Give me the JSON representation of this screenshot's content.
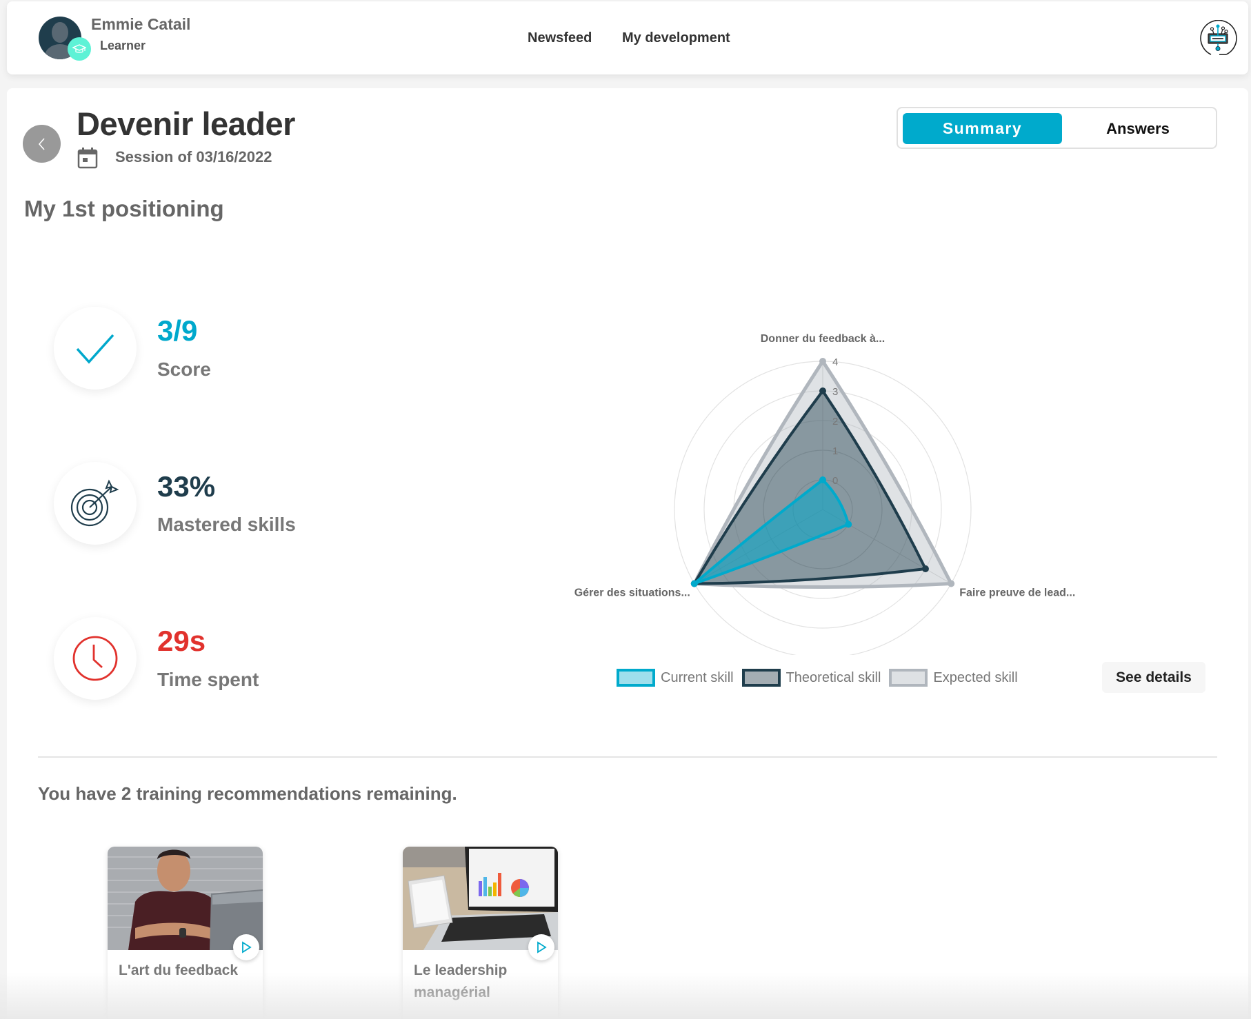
{
  "header": {
    "user_name": "Emmie Catail",
    "user_role": "Learner",
    "nav": [
      {
        "label": "Newsfeed"
      },
      {
        "label": "My development"
      }
    ],
    "avatar_icon": "user-silhouette",
    "role_icon": "graduation-cap-icon",
    "logo_icon": "circuit-brain-logo"
  },
  "page": {
    "title": "Devenir leader",
    "session_label": "Session of 03/16/2022",
    "section_title": "My 1st positioning",
    "back_icon": "chevron-left-icon",
    "calendar_icon": "calendar-icon"
  },
  "tabs": {
    "items": [
      {
        "label": "Summary",
        "active": true
      },
      {
        "label": "Answers",
        "active": false
      }
    ]
  },
  "stats": [
    {
      "icon": "check-icon",
      "value": "3/9",
      "label": "Score",
      "color": "#00a8cc"
    },
    {
      "icon": "target-icon",
      "value": "33%",
      "label": "Mastered skills",
      "color": "#1f3d4c"
    },
    {
      "icon": "clock-icon",
      "value": "29s",
      "label": "Time spent",
      "color": "#e1322d"
    }
  ],
  "chart_data": {
    "type": "radar",
    "categories": [
      "Donner du feedback à...",
      "Faire preuve de lead...",
      "Gérer des situations..."
    ],
    "series": [
      {
        "name": "Current skill",
        "values": [
          0,
          0,
          4
        ],
        "color": "#00aacc"
      },
      {
        "name": "Theoretical skill",
        "values": [
          3,
          3,
          4
        ],
        "color": "#1f3d4c"
      },
      {
        "name": "Expected skill",
        "values": [
          4,
          4,
          4
        ],
        "color": "#b0b6bd"
      }
    ],
    "ticks": [
      "0",
      "1",
      "2",
      "3",
      "4"
    ],
    "rlim": [
      0,
      4
    ],
    "legend_position": "bottom",
    "grid": true
  },
  "chart_actions": {
    "see_details_label": "See details"
  },
  "recommendations": {
    "title": "You have 2 training recommendations remaining.",
    "courses": [
      {
        "title": "L'art du feedback",
        "play_icon": "play-icon"
      },
      {
        "title": "Le leadership managérial",
        "play_icon": "play-icon"
      }
    ]
  },
  "colors": {
    "accent": "#00aacc",
    "dark": "#1f3d4c",
    "danger": "#e1322d",
    "badge": "#5ef2d6"
  }
}
